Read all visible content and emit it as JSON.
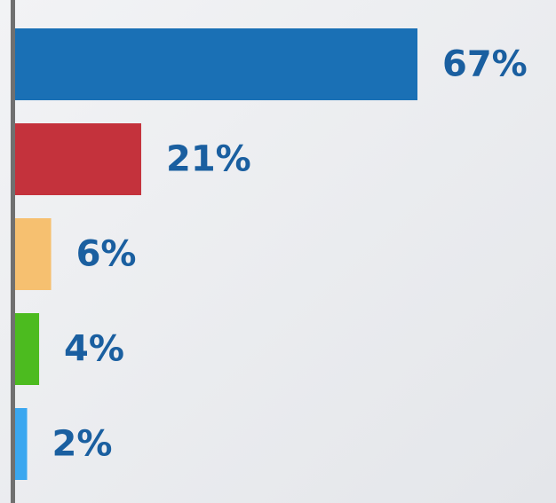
{
  "chart_data": {
    "type": "bar",
    "orientation": "horizontal",
    "values": [
      67,
      21,
      6,
      4,
      2
    ],
    "value_labels": [
      "67%",
      "21%",
      "6%",
      "4%",
      "2%"
    ],
    "colors": [
      "#1a70b5",
      "#c4323c",
      "#f6c070",
      "#4cbb1f",
      "#3aa7f0"
    ]
  }
}
